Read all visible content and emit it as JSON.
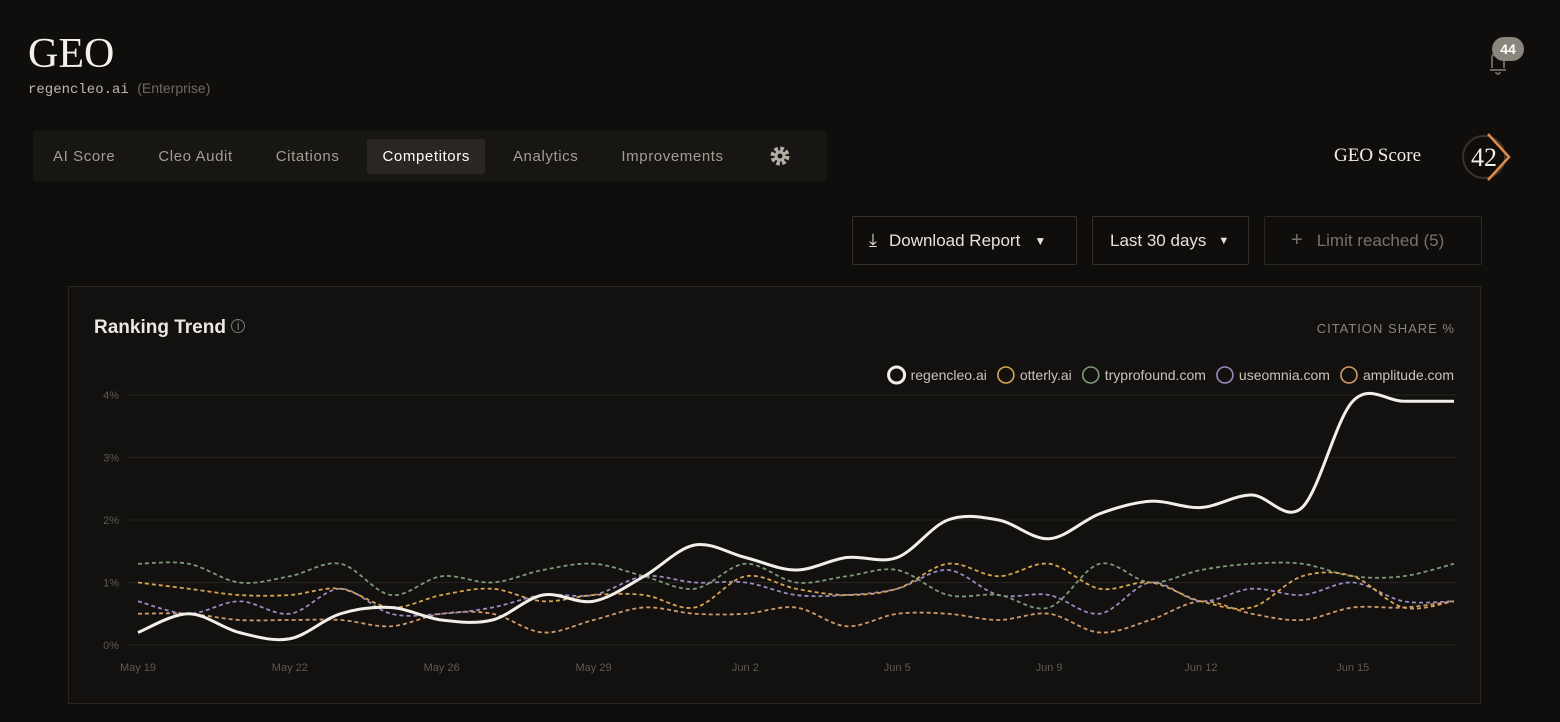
{
  "header": {
    "title": "GEO",
    "domain": "regencleo.ai",
    "plan": "(Enterprise)",
    "notifications": "44"
  },
  "tabs": [
    "AI Score",
    "Cleo Audit",
    "Citations",
    "Competitors",
    "Analytics",
    "Improvements"
  ],
  "active_tab": 3,
  "score": {
    "label": "GEO Score",
    "value": "42"
  },
  "toolbar": {
    "download": "Download Report",
    "range": "Last 30 days",
    "limit": "Limit reached (5)"
  },
  "chart_data": {
    "type": "line",
    "title": "Ranking Trend",
    "y_axis_label": "CITATION SHARE %",
    "categories": [
      "May 19",
      null,
      null,
      "May 22",
      null,
      null,
      "May 26",
      null,
      null,
      "May 29",
      null,
      null,
      "Jun 2",
      null,
      null,
      "Jun 5",
      null,
      null,
      "Jun 9",
      null,
      null,
      "Jun 12",
      null,
      null,
      "Jun 15",
      null,
      null
    ],
    "series": [
      {
        "name": "regencleo.ai",
        "color": "#f2efe9",
        "line_style": "solid",
        "values": [
          0.2,
          0.5,
          0.2,
          0.1,
          0.5,
          0.6,
          0.4,
          0.4,
          0.8,
          0.7,
          1.1,
          1.6,
          1.4,
          1.2,
          1.4,
          1.4,
          2.0,
          2.0,
          1.7,
          2.1,
          2.3,
          2.2,
          2.4,
          2.2,
          3.9,
          3.9,
          3.9
        ]
      },
      {
        "name": "otterly.ai",
        "color": "#d9a54f",
        "line_style": "dashed",
        "values": [
          1.0,
          0.9,
          0.8,
          0.8,
          0.9,
          0.6,
          0.8,
          0.9,
          0.7,
          0.8,
          0.8,
          0.6,
          1.1,
          0.9,
          0.8,
          0.9,
          1.3,
          1.1,
          1.3,
          0.9,
          1.0,
          0.7,
          0.6,
          1.1,
          1.1,
          0.6,
          0.7
        ]
      },
      {
        "name": "tryprofound.com",
        "color": "#7c9a78",
        "line_style": "dashed",
        "values": [
          1.3,
          1.3,
          1.0,
          1.1,
          1.3,
          0.8,
          1.1,
          1.0,
          1.2,
          1.3,
          1.1,
          0.9,
          1.3,
          1.0,
          1.1,
          1.2,
          0.8,
          0.8,
          0.6,
          1.3,
          1.0,
          1.2,
          1.3,
          1.3,
          1.1,
          1.1,
          1.3
        ]
      },
      {
        "name": "useomnia.com",
        "color": "#9a8bc0",
        "line_style": "dashed",
        "values": [
          0.7,
          0.5,
          0.7,
          0.5,
          0.9,
          0.5,
          0.5,
          0.6,
          0.8,
          0.8,
          1.1,
          1.0,
          1.0,
          0.8,
          0.8,
          0.9,
          1.2,
          0.8,
          0.8,
          0.5,
          1.0,
          0.7,
          0.9,
          0.8,
          1.0,
          0.7,
          0.7
        ]
      },
      {
        "name": "amplitude.com",
        "color": "#d29a6a",
        "line_style": "dashed",
        "values": [
          0.5,
          0.5,
          0.4,
          0.4,
          0.4,
          0.3,
          0.5,
          0.5,
          0.2,
          0.4,
          0.6,
          0.5,
          0.5,
          0.6,
          0.3,
          0.5,
          0.5,
          0.4,
          0.5,
          0.2,
          0.4,
          0.7,
          0.5,
          0.4,
          0.6,
          0.6,
          0.7
        ]
      }
    ],
    "ylim": [
      0,
      4
    ],
    "yticks": [
      {
        "value": 0,
        "label": "0%"
      },
      {
        "value": 1,
        "label": "1%"
      },
      {
        "value": 2,
        "label": "2%"
      },
      {
        "value": 3,
        "label": "3%"
      },
      {
        "value": 4,
        "label": "4%"
      }
    ],
    "grid": true,
    "legend": "top-right"
  }
}
